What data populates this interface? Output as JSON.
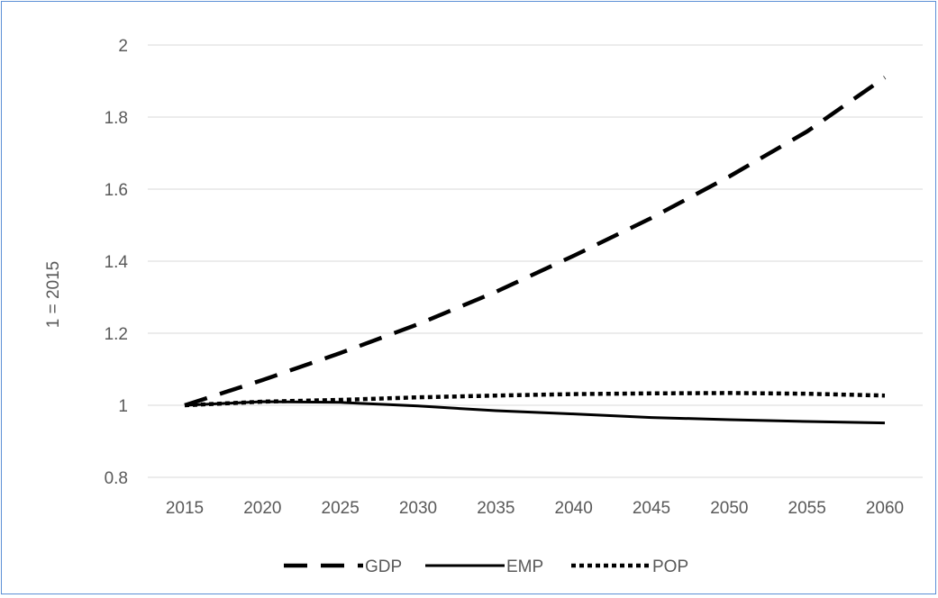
{
  "chart_data": {
    "type": "line",
    "title": "",
    "xlabel": "",
    "ylabel": "1 = 2015",
    "x": [
      "2015",
      "2020",
      "2025",
      "2030",
      "2035",
      "2040",
      "2045",
      "2050",
      "2055",
      "2060"
    ],
    "y_ticks": [
      "0.8",
      "1",
      "1.2",
      "1.4",
      "1.6",
      "1.8",
      "2"
    ],
    "ylim": [
      0.8,
      2.0
    ],
    "grid": true,
    "legend_position": "bottom",
    "series": [
      {
        "name": "GDP",
        "style": "dashed",
        "color": "#000000",
        "values": [
          1.0,
          1.07,
          1.145,
          1.225,
          1.315,
          1.415,
          1.52,
          1.635,
          1.76,
          1.91
        ]
      },
      {
        "name": "EMP",
        "style": "solid",
        "color": "#000000",
        "values": [
          1.0,
          1.01,
          1.008,
          0.998,
          0.985,
          0.976,
          0.966,
          0.96,
          0.955,
          0.951
        ]
      },
      {
        "name": "POP",
        "style": "dotted",
        "color": "#000000",
        "values": [
          1.0,
          1.01,
          1.015,
          1.022,
          1.027,
          1.031,
          1.033,
          1.034,
          1.032,
          1.027
        ]
      }
    ]
  }
}
